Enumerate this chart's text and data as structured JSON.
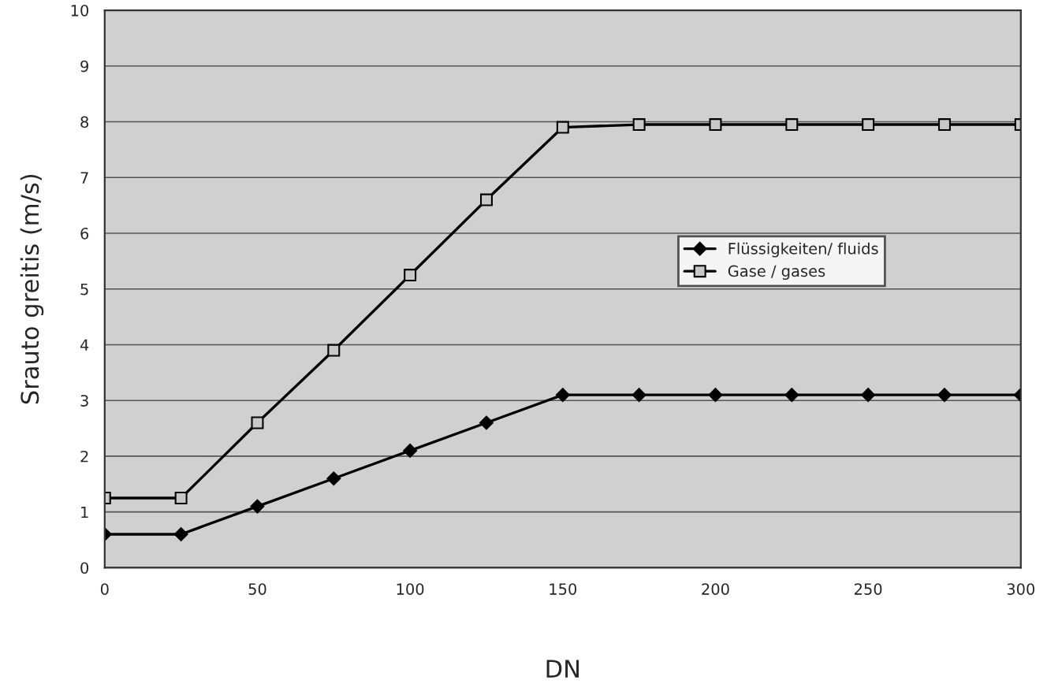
{
  "chart_data": {
    "type": "line",
    "xlabel": "DN",
    "ylabel": "Srauto greitis (m/s)",
    "x": [
      0,
      25,
      50,
      75,
      100,
      125,
      150,
      175,
      200,
      225,
      250,
      275,
      300
    ],
    "series": [
      {
        "name": "Flüssigkeiten/ fluids",
        "color": "#000000",
        "marker": "diamond",
        "values": [
          0.6,
          0.6,
          1.1,
          1.6,
          2.1,
          2.6,
          3.1,
          3.1,
          3.1,
          3.1,
          3.1,
          3.1,
          3.1
        ]
      },
      {
        "name": "Gase / gases",
        "color": "#000000",
        "marker": "square",
        "values": [
          1.25,
          1.25,
          2.6,
          3.9,
          5.25,
          6.6,
          7.9,
          7.95,
          7.95,
          7.95,
          7.95,
          7.95,
          7.95
        ]
      }
    ],
    "xlim": [
      0,
      300
    ],
    "xticks": [
      0,
      50,
      100,
      150,
      200,
      250,
      300
    ],
    "ylim": [
      0,
      10
    ],
    "yticks": [
      0,
      1,
      2,
      3,
      4,
      5,
      6,
      7,
      8,
      9,
      10
    ],
    "grid": "y",
    "legend": "right",
    "line_style": "solid"
  }
}
